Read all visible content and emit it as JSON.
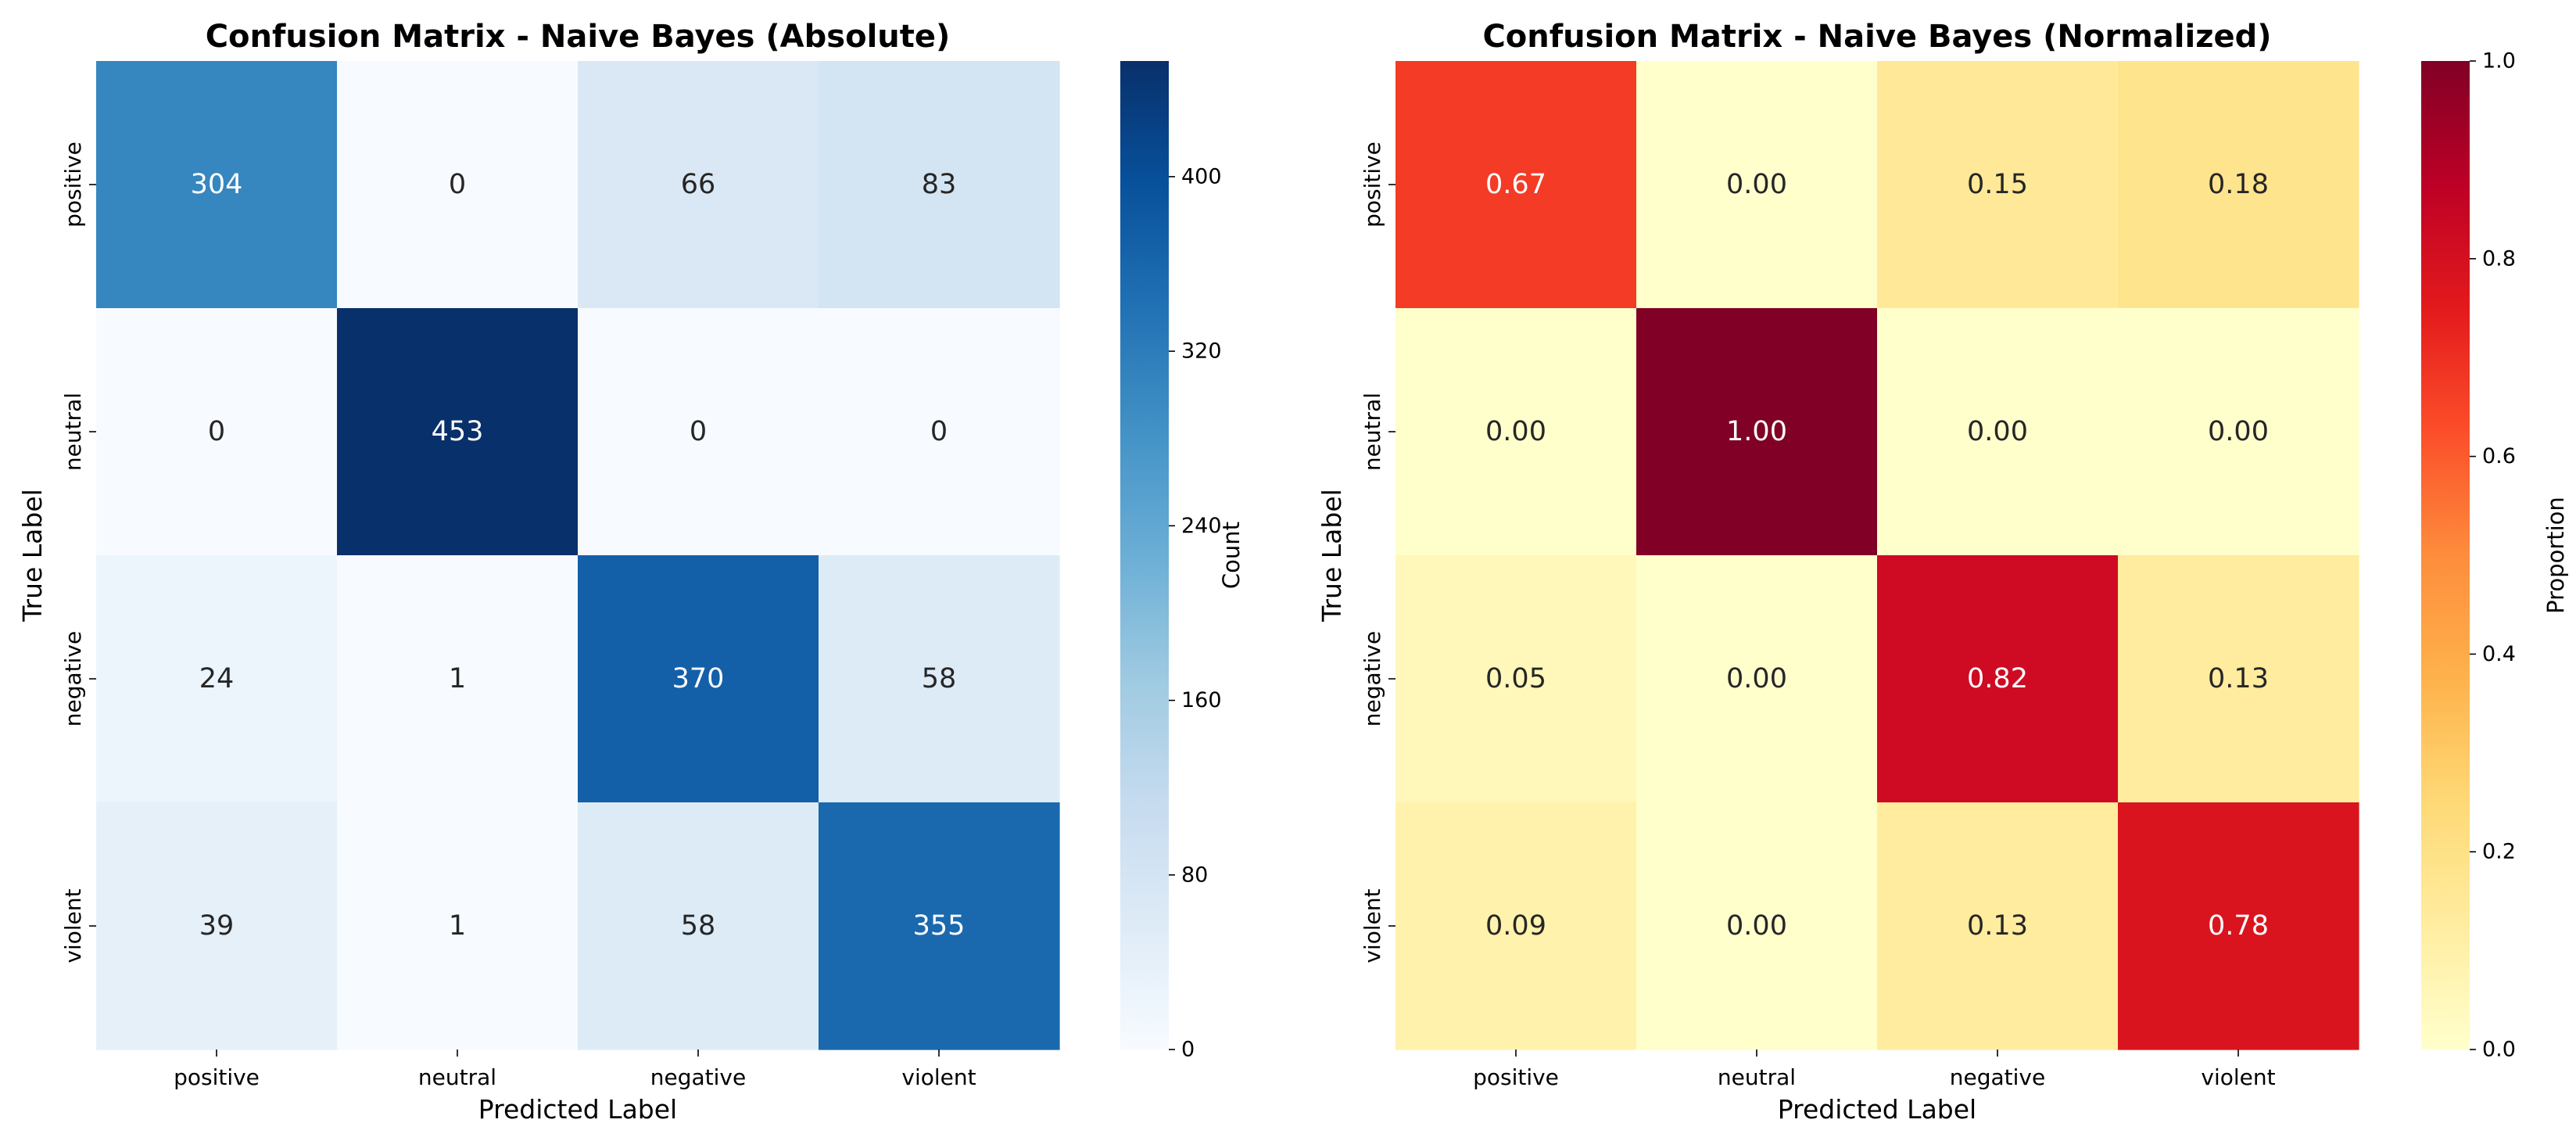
{
  "chart_data": [
    {
      "type": "heatmap",
      "title": "Confusion Matrix - Naive Bayes (Absolute)",
      "xlabel": "Predicted Label",
      "ylabel": "True Label",
      "x_categories": [
        "positive",
        "neutral",
        "negative",
        "violent"
      ],
      "y_categories": [
        "positive",
        "neutral",
        "negative",
        "violent"
      ],
      "values": [
        [
          304,
          0,
          66,
          83
        ],
        [
          0,
          453,
          0,
          0
        ],
        [
          24,
          1,
          370,
          58
        ],
        [
          39,
          1,
          58,
          355
        ]
      ],
      "cell_labels": [
        [
          "304",
          "0",
          "66",
          "83"
        ],
        [
          "0",
          "453",
          "0",
          "0"
        ],
        [
          "24",
          "1",
          "370",
          "58"
        ],
        [
          "39",
          "1",
          "58",
          "355"
        ]
      ],
      "colormap": "Blues",
      "colors": [
        "#f7fbff",
        "#deebf7",
        "#c6dbef",
        "#9ecae1",
        "#6baed6",
        "#4292c6",
        "#2171b5",
        "#08519c",
        "#08306b"
      ],
      "vmin": 0,
      "vmax": 453,
      "colorbar": {
        "label": "Count",
        "ticks": [
          0,
          80,
          160,
          240,
          320,
          400
        ],
        "tick_labels": [
          "0",
          "80",
          "160",
          "240",
          "320",
          "400"
        ]
      }
    },
    {
      "type": "heatmap",
      "title": "Confusion Matrix - Naive Bayes (Normalized)",
      "xlabel": "Predicted Label",
      "ylabel": "True Label",
      "x_categories": [
        "positive",
        "neutral",
        "negative",
        "violent"
      ],
      "y_categories": [
        "positive",
        "neutral",
        "negative",
        "violent"
      ],
      "values": [
        [
          0.67,
          0.0,
          0.15,
          0.18
        ],
        [
          0.0,
          1.0,
          0.0,
          0.0
        ],
        [
          0.05,
          0.0,
          0.82,
          0.13
        ],
        [
          0.09,
          0.0,
          0.13,
          0.78
        ]
      ],
      "cell_labels": [
        [
          "0.67",
          "0.00",
          "0.15",
          "0.18"
        ],
        [
          "0.00",
          "1.00",
          "0.00",
          "0.00"
        ],
        [
          "0.05",
          "0.00",
          "0.82",
          "0.13"
        ],
        [
          "0.09",
          "0.00",
          "0.13",
          "0.78"
        ]
      ],
      "colormap": "YlOrRd",
      "colors": [
        "#ffffcc",
        "#ffeda0",
        "#fed976",
        "#feb24c",
        "#fd8d3c",
        "#fc4e2a",
        "#e31a1c",
        "#bd0026",
        "#800026"
      ],
      "vmin": 0,
      "vmax": 1,
      "colorbar": {
        "label": "Proportion",
        "ticks": [
          0,
          0.2,
          0.4,
          0.6,
          0.8,
          1.0
        ],
        "tick_labels": [
          "0.0",
          "0.2",
          "0.4",
          "0.6",
          "0.8",
          "1.0"
        ]
      }
    }
  ]
}
